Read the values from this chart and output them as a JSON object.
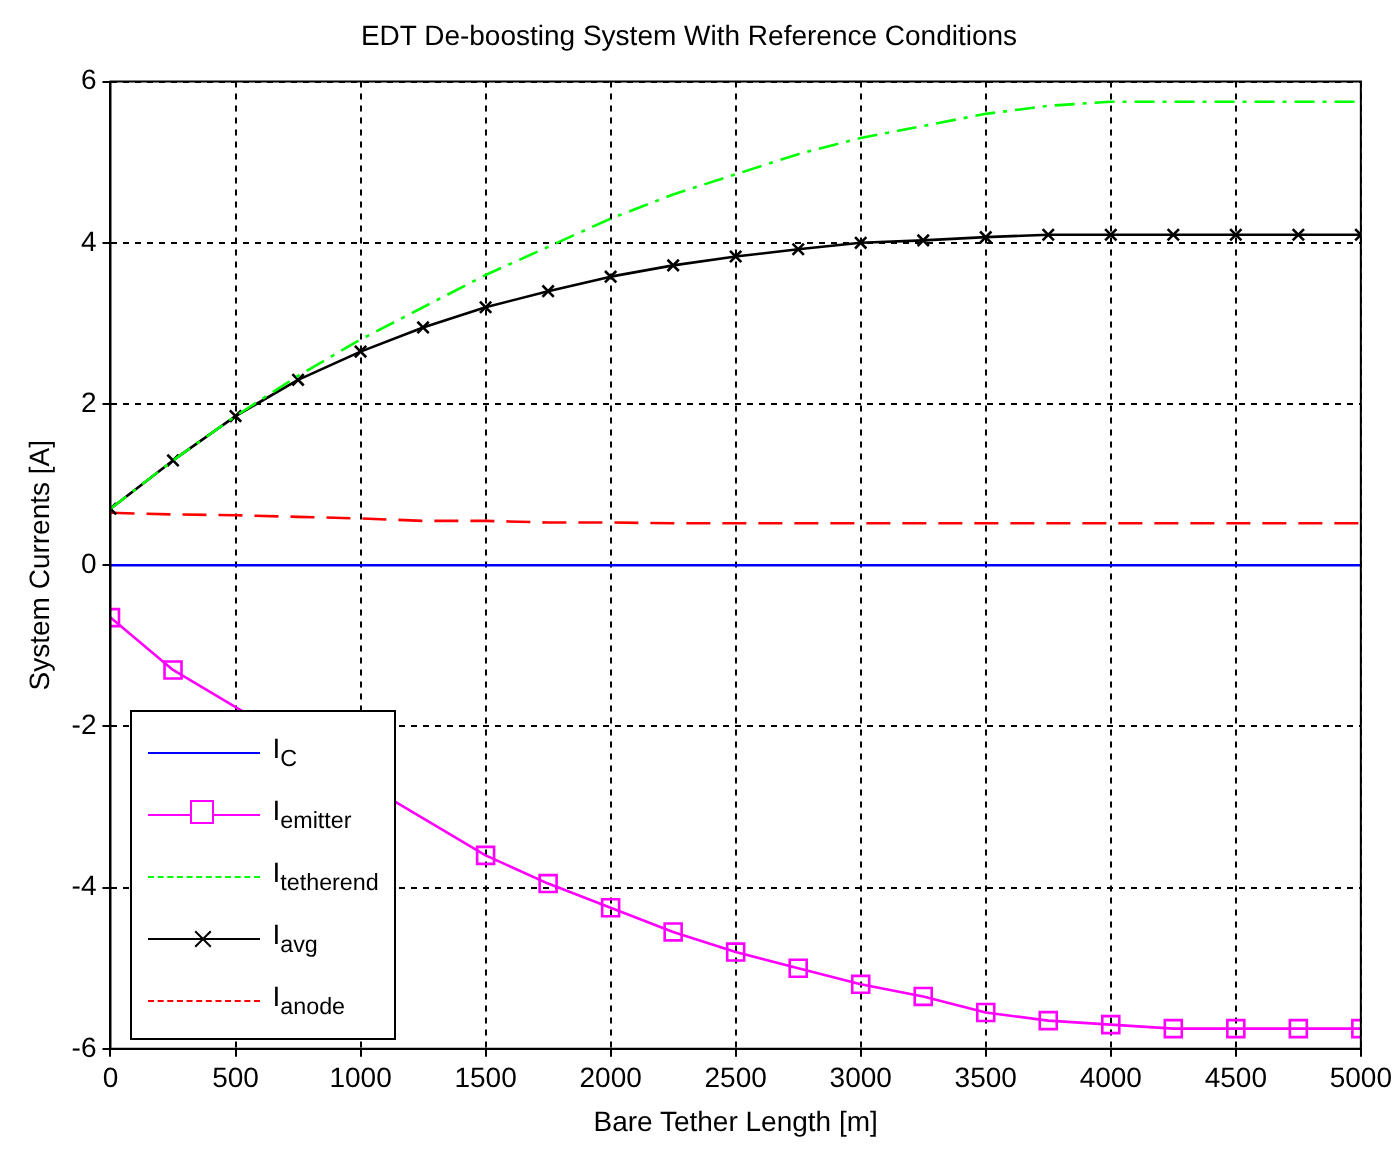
{
  "chart_data": {
    "type": "line",
    "title": "EDT De-boosting System With Reference Conditions",
    "xlabel": "Bare Tether Length [m]",
    "ylabel": "System Currents [A]",
    "x": [
      0,
      250,
      500,
      750,
      1000,
      1250,
      1500,
      1750,
      2000,
      2250,
      2500,
      2750,
      3000,
      3250,
      3500,
      3750,
      4000,
      4250,
      4500,
      4750,
      5000
    ],
    "xlim": [
      0,
      5000
    ],
    "xticks": [
      0,
      500,
      1000,
      1500,
      2000,
      2500,
      3000,
      3500,
      4000,
      4500,
      5000
    ],
    "ylim": [
      -6,
      6
    ],
    "yticks": [
      -6,
      -4,
      -2,
      0,
      2,
      4,
      6
    ],
    "grid": true,
    "legend": "bottom left",
    "series": [
      {
        "name": "I$_{C}$",
        "color": "#0000ff",
        "marker": "none",
        "line_style": "solid",
        "values": [
          0,
          0,
          0,
          0,
          0,
          0,
          0,
          0,
          0,
          0,
          0,
          0,
          0,
          0,
          0,
          0,
          0,
          0,
          0,
          0,
          0
        ]
      },
      {
        "name": "I$_{emitter}$",
        "color": "#ff00ff",
        "marker": "square",
        "line_style": "solid",
        "values": [
          -0.65,
          -1.3,
          null,
          null,
          null,
          null,
          -3.6,
          -3.95,
          -4.25,
          -4.55,
          -4.8,
          -5.0,
          -5.2,
          -5.35,
          -5.55,
          -5.65,
          -5.7,
          -5.75,
          -5.75,
          -5.75,
          -5.75
        ]
      },
      {
        "name": "I$_{tetherend}$",
        "color": "#00ff00",
        "marker": "none",
        "line_style": "dashdot",
        "values": [
          0.7,
          1.3,
          1.85,
          2.35,
          2.8,
          3.2,
          3.6,
          3.95,
          4.3,
          4.6,
          4.85,
          5.1,
          5.3,
          5.45,
          5.6,
          5.7,
          5.75,
          5.75,
          5.75,
          5.75,
          5.75
        ]
      },
      {
        "name": "I$_{avg}$",
        "color": "#000000",
        "marker": "cross",
        "line_style": "solid",
        "values": [
          0.7,
          1.3,
          1.85,
          2.3,
          2.65,
          2.95,
          3.2,
          3.4,
          3.58,
          3.72,
          3.83,
          3.92,
          4.0,
          4.03,
          4.07,
          4.1,
          4.1,
          4.1,
          4.1,
          4.1,
          4.1
        ]
      },
      {
        "name": "I$_{anode}$",
        "color": "#ff0000",
        "marker": "none",
        "line_style": "dashed",
        "values": [
          0.65,
          0.63,
          0.62,
          0.6,
          0.58,
          0.55,
          0.55,
          0.53,
          0.53,
          0.52,
          0.52,
          0.52,
          0.52,
          0.52,
          0.52,
          0.52,
          0.52,
          0.52,
          0.52,
          0.52,
          0.52
        ]
      }
    ]
  }
}
